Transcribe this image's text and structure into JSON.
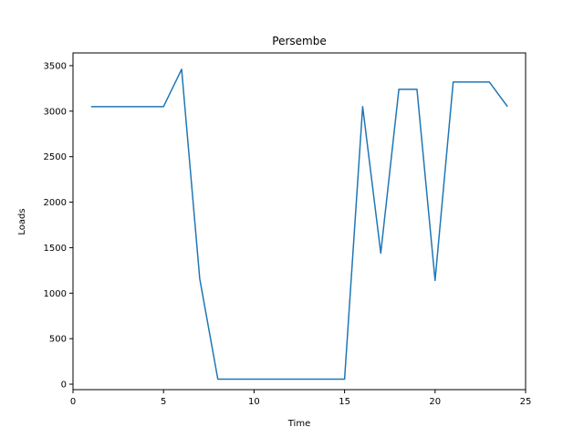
{
  "chart_data": {
    "type": "line",
    "title": "Persembe",
    "xlabel": "Time",
    "ylabel": "Loads",
    "xlim": [
      0,
      25
    ],
    "ylim": [
      -60,
      3640
    ],
    "xticks": [
      0,
      5,
      10,
      15,
      20,
      25
    ],
    "yticks": [
      0,
      500,
      1000,
      1500,
      2000,
      2500,
      3000,
      3500
    ],
    "grid": false,
    "series": [
      {
        "color": "#1f77b4",
        "x": [
          1,
          2,
          3,
          4,
          5,
          6,
          7,
          8,
          9,
          10,
          11,
          12,
          13,
          14,
          15,
          16,
          17,
          18,
          19,
          20,
          21,
          22,
          23,
          24
        ],
        "values": [
          3050,
          3050,
          3050,
          3050,
          3050,
          3460,
          1160,
          55,
          55,
          55,
          55,
          55,
          55,
          55,
          55,
          3050,
          1440,
          3240,
          3240,
          1140,
          3320,
          3320,
          3320,
          3050
        ]
      }
    ]
  }
}
